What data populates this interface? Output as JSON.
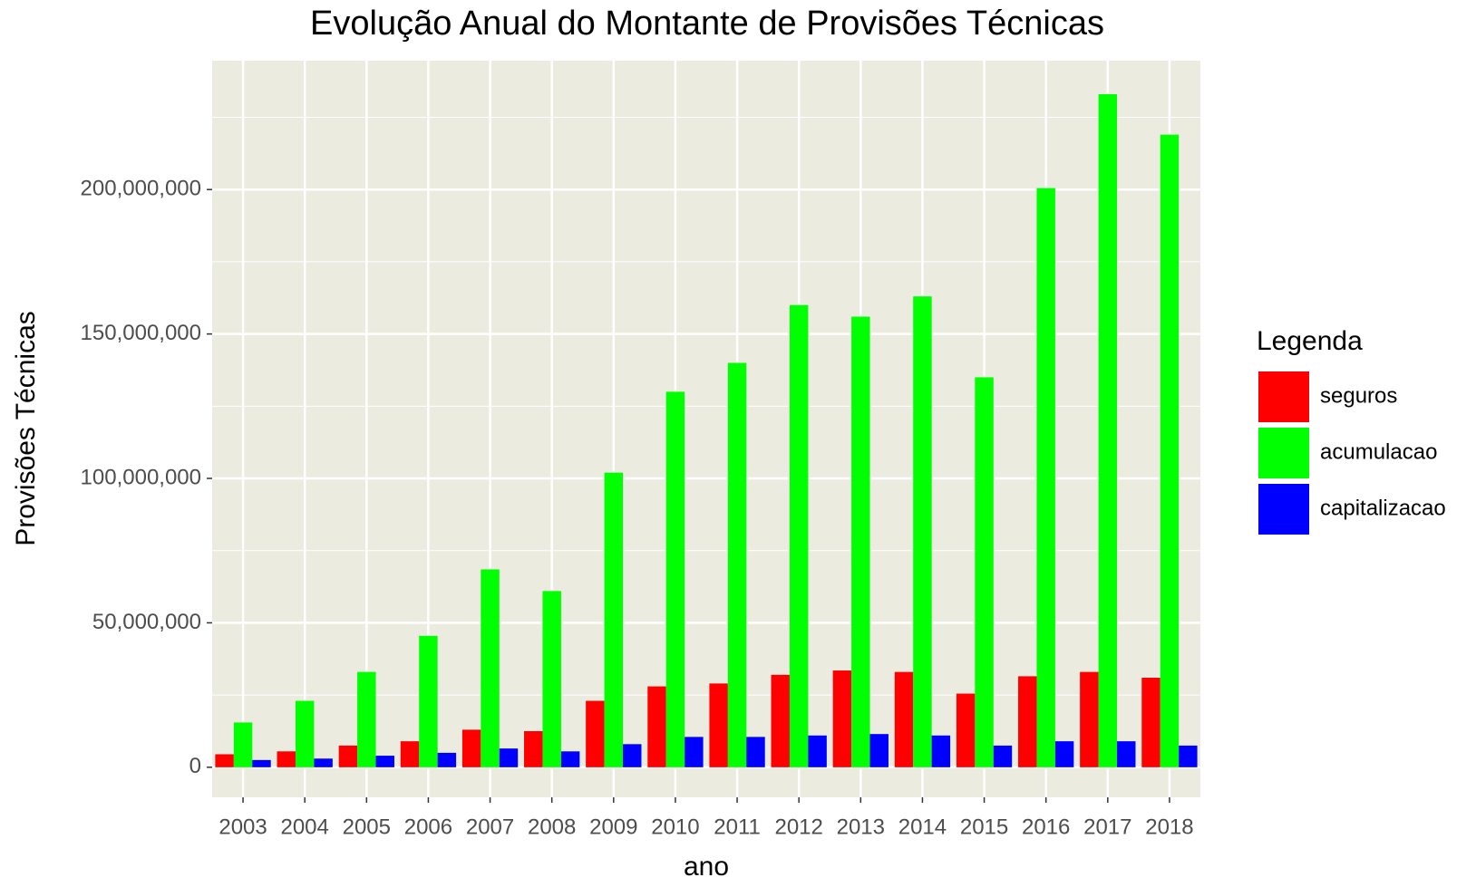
{
  "chart_data": {
    "type": "bar",
    "title": "Evolução Anual do Montante de Provisões Técnicas",
    "xlabel": "ano",
    "ylabel": "Provisões Técnicas",
    "legend_title": "Legenda",
    "categories": [
      "2003",
      "2004",
      "2005",
      "2006",
      "2007",
      "2008",
      "2009",
      "2010",
      "2011",
      "2012",
      "2013",
      "2014",
      "2015",
      "2016",
      "2017",
      "2018"
    ],
    "series": [
      {
        "name": "seguros",
        "color": "#ff0000",
        "values": [
          4500000,
          5500000,
          7500000,
          9000000,
          13000000,
          12500000,
          23000000,
          28000000,
          29000000,
          32000000,
          33500000,
          33000000,
          25500000,
          31500000,
          33000000,
          31000000
        ]
      },
      {
        "name": "acumulacao",
        "color": "#00ff00",
        "values": [
          15500000,
          23000000,
          33000000,
          45500000,
          68500000,
          61000000,
          102000000,
          130000000,
          140000000,
          160000000,
          156000000,
          163000000,
          135000000,
          200500000,
          233000000,
          219000000
        ]
      },
      {
        "name": "capitalizacao",
        "color": "#0000ff",
        "values": [
          2500000,
          3000000,
          4000000,
          5000000,
          6500000,
          5500000,
          8000000,
          10500000,
          10500000,
          11000000,
          11500000,
          11000000,
          7500000,
          9000000,
          9000000,
          7500000
        ]
      }
    ],
    "ylim": [
      -10400000,
      244600000
    ],
    "yticks": [
      {
        "value": 0,
        "label": "0"
      },
      {
        "value": 50000000,
        "label": "50,000,000"
      },
      {
        "value": 100000000,
        "label": "100,000,000"
      },
      {
        "value": 150000000,
        "label": "150,000,000"
      },
      {
        "value": 200000000,
        "label": "200,000,000"
      }
    ],
    "grid": true,
    "legend": "right"
  }
}
